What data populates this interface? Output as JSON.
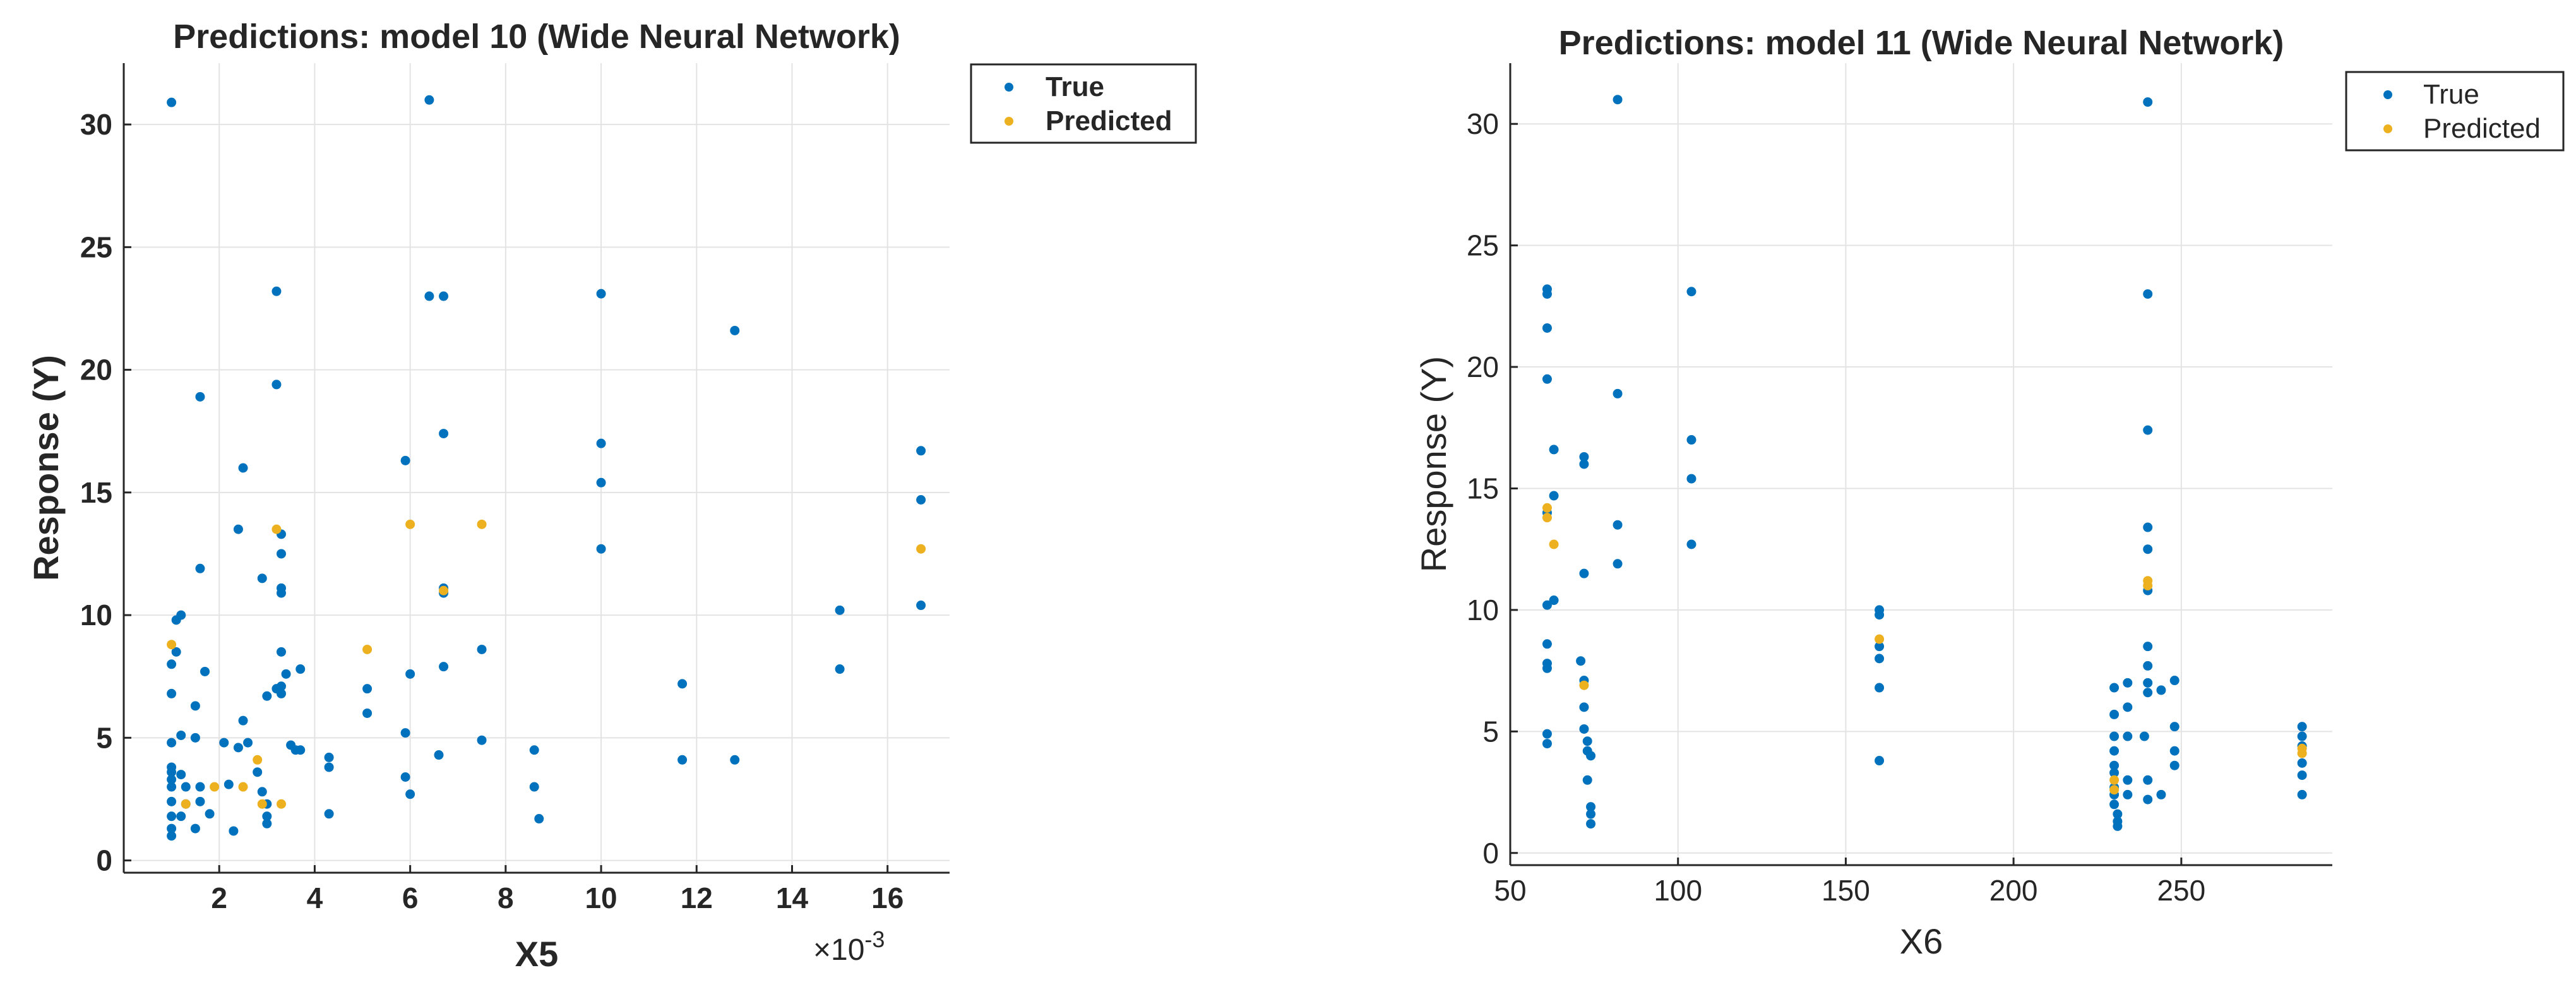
{
  "chart_data": [
    {
      "type": "scatter",
      "title": "Predictions: model 10 (Wide Neural Network)",
      "xlabel": "X5",
      "ylabel": "Response (Y)",
      "x_exponent_label": "×10",
      "x_exponent_power": "-3",
      "xlim": [
        0,
        17.3
      ],
      "ylim": [
        -0.5,
        32.5
      ],
      "xticks": [
        2,
        4,
        6,
        8,
        10,
        12,
        14,
        16
      ],
      "xtick_labels": [
        "2",
        "4",
        "6",
        "8",
        "10",
        "12",
        "14",
        "16"
      ],
      "yticks": [
        0,
        5,
        10,
        15,
        20,
        25,
        30
      ],
      "ytick_labels": [
        "0",
        "5",
        "10",
        "15",
        "20",
        "25",
        "30"
      ],
      "grid": true,
      "bold_text": true,
      "legend": {
        "position": "outside top-right",
        "entries": [
          "True",
          "Predicted"
        ]
      },
      "series": [
        {
          "name": "True",
          "color": "#0072BD",
          "points": [
            [
              1.0,
              30.9
            ],
            [
              1.0,
              8.0
            ],
            [
              1.0,
              6.8
            ],
            [
              1.0,
              4.8
            ],
            [
              1.0,
              3.8
            ],
            [
              1.0,
              3.6
            ],
            [
              1.0,
              3.3
            ],
            [
              1.0,
              3.0
            ],
            [
              1.0,
              2.4
            ],
            [
              1.0,
              1.8
            ],
            [
              1.0,
              1.3
            ],
            [
              1.0,
              1.0
            ],
            [
              1.1,
              9.8
            ],
            [
              1.2,
              10.0
            ],
            [
              1.1,
              8.5
            ],
            [
              1.2,
              5.1
            ],
            [
              1.2,
              3.5
            ],
            [
              1.3,
              3.0
            ],
            [
              1.3,
              2.3
            ],
            [
              1.2,
              1.8
            ],
            [
              1.5,
              5.0
            ],
            [
              1.6,
              18.9
            ],
            [
              1.6,
              11.9
            ],
            [
              1.7,
              7.7
            ],
            [
              1.5,
              6.3
            ],
            [
              1.6,
              3.0
            ],
            [
              1.6,
              2.4
            ],
            [
              1.5,
              1.3
            ],
            [
              1.8,
              1.9
            ],
            [
              2.1,
              4.8
            ],
            [
              2.2,
              3.1
            ],
            [
              2.3,
              1.2
            ],
            [
              2.4,
              13.5
            ],
            [
              2.5,
              16.0
            ],
            [
              2.5,
              5.7
            ],
            [
              2.6,
              4.8
            ],
            [
              2.4,
              4.6
            ],
            [
              2.8,
              3.6
            ],
            [
              2.9,
              2.8
            ],
            [
              2.9,
              11.5
            ],
            [
              3.0,
              6.7
            ],
            [
              3.2,
              23.2
            ],
            [
              3.2,
              19.4
            ],
            [
              3.3,
              13.3
            ],
            [
              3.3,
              12.5
            ],
            [
              3.3,
              11.1
            ],
            [
              3.3,
              10.9
            ],
            [
              3.3,
              8.5
            ],
            [
              3.2,
              7.0
            ],
            [
              3.3,
              7.1
            ],
            [
              3.3,
              6.8
            ],
            [
              3.4,
              7.6
            ],
            [
              3.0,
              2.3
            ],
            [
              3.0,
              1.8
            ],
            [
              3.0,
              1.5
            ],
            [
              3.5,
              4.7
            ],
            [
              3.6,
              4.5
            ],
            [
              3.7,
              7.8
            ],
            [
              3.7,
              4.5
            ],
            [
              4.3,
              4.2
            ],
            [
              4.3,
              3.8
            ],
            [
              4.3,
              1.9
            ],
            [
              5.1,
              7.0
            ],
            [
              5.1,
              6.0
            ],
            [
              5.9,
              16.3
            ],
            [
              6.0,
              7.6
            ],
            [
              5.9,
              5.2
            ],
            [
              5.9,
              3.4
            ],
            [
              6.0,
              2.7
            ],
            [
              6.4,
              31.0
            ],
            [
              6.4,
              23.0
            ],
            [
              6.7,
              23.0
            ],
            [
              6.7,
              17.4
            ],
            [
              6.7,
              11.1
            ],
            [
              6.7,
              10.9
            ],
            [
              6.7,
              7.9
            ],
            [
              6.6,
              4.3
            ],
            [
              7.5,
              8.6
            ],
            [
              7.5,
              4.9
            ],
            [
              8.6,
              4.5
            ],
            [
              8.6,
              3.0
            ],
            [
              8.7,
              1.7
            ],
            [
              10.0,
              23.1
            ],
            [
              10.0,
              17.0
            ],
            [
              10.0,
              15.4
            ],
            [
              10.0,
              12.7
            ],
            [
              11.7,
              7.2
            ],
            [
              11.7,
              4.1
            ],
            [
              12.8,
              21.6
            ],
            [
              12.8,
              4.1
            ],
            [
              15.0,
              10.2
            ],
            [
              15.0,
              7.8
            ],
            [
              16.7,
              16.7
            ],
            [
              16.7,
              14.7
            ],
            [
              16.7,
              10.4
            ]
          ]
        },
        {
          "name": "Predicted",
          "color": "#EDB120",
          "points": [
            [
              1.0,
              8.8
            ],
            [
              1.3,
              2.3
            ],
            [
              1.9,
              3.0
            ],
            [
              2.5,
              3.0
            ],
            [
              2.8,
              4.1
            ],
            [
              2.9,
              2.3
            ],
            [
              3.2,
              13.5
            ],
            [
              3.3,
              2.3
            ],
            [
              5.1,
              8.6
            ],
            [
              6.0,
              13.7
            ],
            [
              6.7,
              11.0
            ],
            [
              7.5,
              13.7
            ],
            [
              16.7,
              12.7
            ]
          ]
        }
      ]
    },
    {
      "type": "scatter",
      "title": "Predictions: model 11 (Wide Neural Network)",
      "xlabel": "X6",
      "ylabel": "Response (Y)",
      "xlim": [
        50,
        295
      ],
      "ylim": [
        -0.5,
        32.5
      ],
      "xticks": [
        50,
        100,
        150,
        200,
        250
      ],
      "xtick_labels": [
        "50",
        "100",
        "150",
        "200",
        "250"
      ],
      "yticks": [
        0,
        5,
        10,
        15,
        20,
        25,
        30
      ],
      "ytick_labels": [
        "0",
        "5",
        "10",
        "15",
        "20",
        "25",
        "30"
      ],
      "grid": true,
      "bold_text": false,
      "legend": {
        "position": "outside top-right",
        "entries": [
          "True",
          "Predicted"
        ]
      },
      "series": [
        {
          "name": "True",
          "color": "#0072BD",
          "points": [
            [
              61,
              23.2
            ],
            [
              61,
              23.0
            ],
            [
              61,
              21.6
            ],
            [
              61,
              19.5
            ],
            [
              61,
              14.0
            ],
            [
              61,
              10.2
            ],
            [
              61,
              8.6
            ],
            [
              61,
              7.8
            ],
            [
              61,
              7.6
            ],
            [
              61,
              4.9
            ],
            [
              61,
              4.5
            ],
            [
              63,
              16.6
            ],
            [
              63,
              14.7
            ],
            [
              63,
              10.4
            ],
            [
              72,
              16.3
            ],
            [
              72,
              16.0
            ],
            [
              72,
              11.5
            ],
            [
              71,
              7.9
            ],
            [
              72,
              7.1
            ],
            [
              72,
              6.0
            ],
            [
              72,
              5.1
            ],
            [
              73,
              4.6
            ],
            [
              73,
              4.2
            ],
            [
              74,
              4.0
            ],
            [
              73,
              3.0
            ],
            [
              74,
              1.9
            ],
            [
              74,
              1.6
            ],
            [
              74,
              1.2
            ],
            [
              82,
              31.0
            ],
            [
              82,
              18.9
            ],
            [
              82,
              13.5
            ],
            [
              82,
              11.9
            ],
            [
              104,
              23.1
            ],
            [
              104,
              17.0
            ],
            [
              104,
              15.4
            ],
            [
              104,
              12.7
            ],
            [
              160,
              10.0
            ],
            [
              160,
              9.8
            ],
            [
              160,
              8.5
            ],
            [
              160,
              8.0
            ],
            [
              160,
              6.8
            ],
            [
              160,
              3.8
            ],
            [
              230,
              6.8
            ],
            [
              230,
              5.7
            ],
            [
              230,
              4.8
            ],
            [
              230,
              4.2
            ],
            [
              230,
              3.6
            ],
            [
              230,
              3.3
            ],
            [
              230,
              2.7
            ],
            [
              230,
              2.4
            ],
            [
              230,
              2.0
            ],
            [
              231,
              1.6
            ],
            [
              231,
              1.3
            ],
            [
              231,
              1.1
            ],
            [
              234,
              7.0
            ],
            [
              234,
              6.0
            ],
            [
              234,
              4.8
            ],
            [
              234,
              3.0
            ],
            [
              234,
              2.4
            ],
            [
              240,
              30.9
            ],
            [
              240,
              23.0
            ],
            [
              240,
              17.4
            ],
            [
              240,
              13.4
            ],
            [
              240,
              12.5
            ],
            [
              240,
              10.8
            ],
            [
              240,
              8.5
            ],
            [
              240,
              7.7
            ],
            [
              240,
              7.0
            ],
            [
              240,
              6.6
            ],
            [
              239,
              4.8
            ],
            [
              240,
              3.0
            ],
            [
              240,
              2.2
            ],
            [
              244,
              6.7
            ],
            [
              244,
              2.4
            ],
            [
              248,
              7.1
            ],
            [
              248,
              5.2
            ],
            [
              248,
              4.2
            ],
            [
              248,
              3.6
            ],
            [
              286,
              5.2
            ],
            [
              286,
              4.8
            ],
            [
              286,
              4.4
            ],
            [
              286,
              3.7
            ],
            [
              286,
              3.2
            ],
            [
              286,
              2.4
            ]
          ]
        },
        {
          "name": "Predicted",
          "color": "#EDB120",
          "points": [
            [
              61,
              14.2
            ],
            [
              61,
              13.8
            ],
            [
              63,
              12.7
            ],
            [
              72,
              6.9
            ],
            [
              160,
              8.8
            ],
            [
              230,
              3.0
            ],
            [
              230,
              2.6
            ],
            [
              240,
              11.2
            ],
            [
              240,
              11.0
            ],
            [
              286,
              4.3
            ],
            [
              286,
              4.1
            ]
          ]
        }
      ]
    }
  ]
}
